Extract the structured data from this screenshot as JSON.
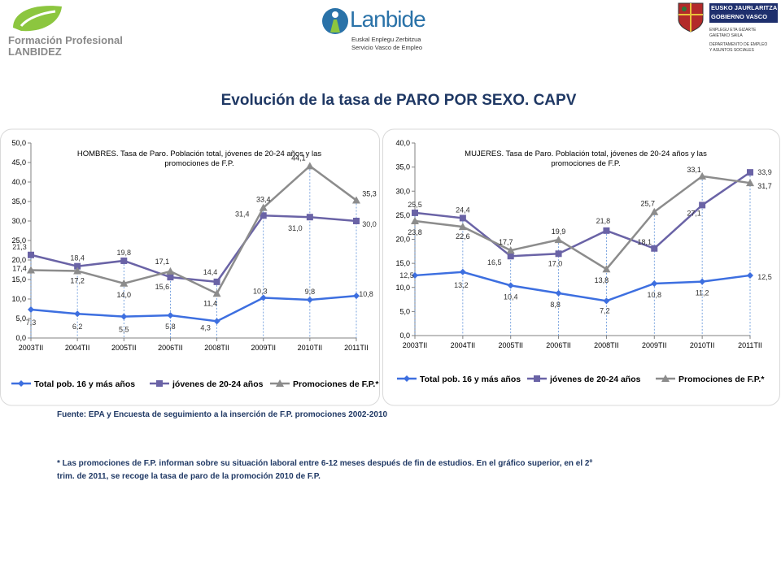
{
  "header": {
    "fp_line1": "Formación Profesional",
    "fp_line2": "LANBIDEZ",
    "lanbide_name": "Lanbide",
    "lanbide_sub1": "Euskal Enplegu Zerbitzua",
    "lanbide_sub2": "Servicio Vasco de Empleo",
    "gv_line1": "EUSKO JAURLARITZA",
    "gv_line2": "GOBIERNO VASCO",
    "gv_dept1": "ENPLEGU ETA GIZARTE",
    "gv_dept2": "GAIETAKO SAILA",
    "gv_dept3": "DEPARTAMENTO DE EMPLEO",
    "gv_dept4": "Y ASUNTOS SOCIALES"
  },
  "main_title": "Evolución de la tasa de PARO POR SEXO. CAPV",
  "chart_data": [
    {
      "type": "line",
      "title_line1": "HOMBRES. Tasa de Paro. Población total,  jóvenes de 20-24 años y  las",
      "title_line2": "promociones de F.P.",
      "categories": [
        "2003TII",
        "2004TII",
        "2005TII",
        "2006TII",
        "2008TII",
        "2009TII",
        "2010TII",
        "2011TII"
      ],
      "ylim": [
        0,
        50
      ],
      "yticks": [
        "0,0",
        "5,0",
        "10,0",
        "15,0",
        "20,0",
        "25,0",
        "30,0",
        "35,0",
        "40,0",
        "45,0",
        "50,0"
      ],
      "grid": false,
      "legend_position": "bottom",
      "series": [
        {
          "name": "Total pob. 16 y más años",
          "color": "#3d6fe0",
          "marker": "diamond",
          "values": [
            7.3,
            6.2,
            5.5,
            5.8,
            4.3,
            10.3,
            9.8,
            10.8
          ],
          "labels": [
            "7,3",
            "6,2",
            "5,5",
            "5,8",
            "4,3",
            "10,3",
            "9,8",
            "10,8"
          ]
        },
        {
          "name": "jóvenes de 20-24 años",
          "color": "#6a63a6",
          "marker": "square",
          "values": [
            21.3,
            18.4,
            19.8,
            15.6,
            14.4,
            31.4,
            31.0,
            30.0
          ],
          "labels": [
            "21,3",
            "18,4",
            "19,8",
            "15,6",
            "14,4",
            "31,4",
            "31,0",
            "30,0"
          ]
        },
        {
          "name": "Promociones de F.P.*",
          "color": "#8c8c8c",
          "marker": "triangle",
          "values": [
            17.4,
            17.2,
            14.0,
            17.1,
            11.4,
            33.4,
            44.1,
            35.3
          ],
          "labels": [
            "17,4",
            "17,2",
            "14,0",
            "17,1",
            "11,4",
            "33,4",
            "44,1",
            "35,3"
          ]
        }
      ]
    },
    {
      "type": "line",
      "title_line1": "MUJERES. Tasa de Paro. Población total,  jóvenes de 20-24 años y  las",
      "title_line2": "promociones de F.P.",
      "categories": [
        "2003TII",
        "2004TII",
        "2005TII",
        "2006TII",
        "2008TII",
        "2009TII",
        "2010TII",
        "2011TII"
      ],
      "ylim": [
        0,
        40
      ],
      "yticks": [
        "0,0",
        "5,0",
        "10,0",
        "15,0",
        "20,0",
        "25,0",
        "30,0",
        "35,0",
        "40,0"
      ],
      "grid": false,
      "legend_position": "bottom",
      "series": [
        {
          "name": "Total pob. 16 y más años",
          "color": "#3d6fe0",
          "marker": "diamond",
          "values": [
            12.5,
            13.2,
            10.4,
            8.8,
            7.2,
            10.8,
            11.2,
            12.5
          ],
          "labels": [
            "12,5",
            "13,2",
            "10,4",
            "8,8",
            "7,2",
            "10,8",
            "11,2",
            "12,5"
          ]
        },
        {
          "name": "jóvenes de 20-24 años",
          "color": "#6a63a6",
          "marker": "square",
          "values": [
            25.5,
            24.4,
            16.5,
            17.0,
            21.8,
            18.1,
            27.1,
            33.9
          ],
          "labels": [
            "25,5",
            "24,4",
            "16,5",
            "17,0",
            "21,8",
            "18,1",
            "27,1",
            "33,9"
          ]
        },
        {
          "name": "Promociones de F.P.*",
          "color": "#8c8c8c",
          "marker": "triangle",
          "values": [
            23.8,
            22.6,
            17.7,
            19.9,
            13.8,
            25.7,
            33.1,
            31.7
          ],
          "labels": [
            "23,8",
            "22,6",
            "17,7",
            "19,9",
            "13,8",
            "25,7",
            "33,1",
            "31,7"
          ]
        }
      ]
    }
  ],
  "notes": {
    "source": "Fuente: EPA y Encuesta de seguimiento a la inserción de F.P. promociones 2002-2010",
    "footnote_line1": "* Las promociones de F.P. informan sobre su situación laboral entre 6-12 meses después de fin de estudios. En el gráfico superior,  en el 2º",
    "footnote_line2": "trim. de 2011, se recoge la tasa de paro de la promoción 2010 de F.P."
  }
}
